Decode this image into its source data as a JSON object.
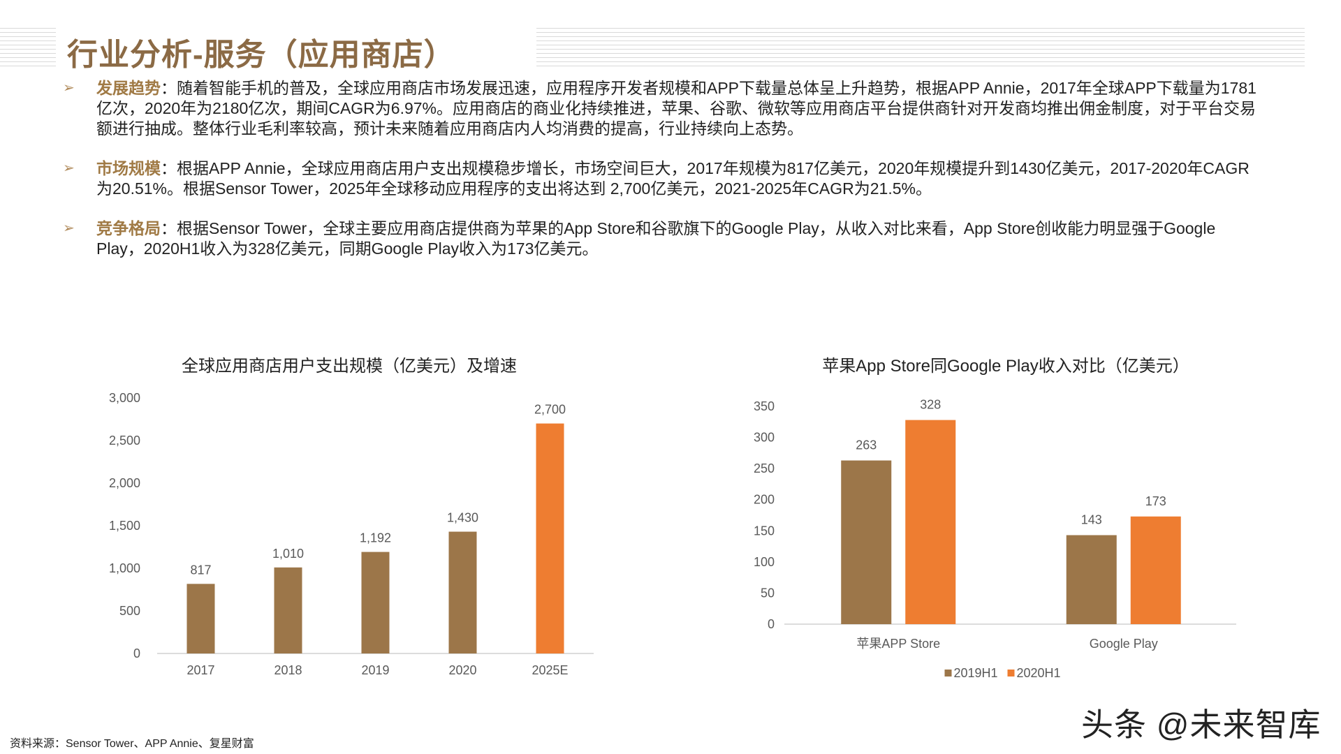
{
  "header": {
    "title": "行业分析-服务（应用商店）"
  },
  "bullets": [
    {
      "lead": "发展趋势",
      "text": "：随着智能手机的普及，全球应用商店市场发展迅速，应用程序开发者规模和APP下载量总体呈上升趋势，根据APP Annie，2017年全球APP下载量为1781亿次，2020年为2180亿次，期间CAGR为6.97%。应用商店的商业化持续推进，苹果、谷歌、微软等应用商店平台提供商针对开发商均推出佣金制度，对于平台交易额进行抽成。整体行业毛利率较高，预计未来随着应用商店内人均消费的提高，行业持续向上态势。"
    },
    {
      "lead": "市场规模",
      "text": "：根据APP Annie，全球应用商店用户支出规模稳步增长，市场空间巨大，2017年规模为817亿美元，2020年规模提升到1430亿美元，2017-2020年CAGR为20.51%。根据Sensor Tower，2025年全球移动应用程序的支出将达到 2,700亿美元，2021-2025年CAGR为21.5%。"
    },
    {
      "lead": "竞争格局",
      "text": "：根据Sensor Tower，全球主要应用商店提供商为苹果的App Store和谷歌旗下的Google Play，从收入对比来看，App Store创收能力明显强于Google Play，2020H1收入为328亿美元，同期Google Play收入为173亿美元。"
    }
  ],
  "chart_data": [
    {
      "type": "bar",
      "title": "全球应用商店用户支出规模（亿美元）及增速",
      "categories": [
        "2017",
        "2018",
        "2019",
        "2020",
        "2025E"
      ],
      "values": [
        817,
        1010,
        1192,
        1430,
        2700
      ],
      "value_labels": [
        "817",
        "1,010",
        "1,192",
        "1,430",
        "2,700"
      ],
      "ylim": [
        0,
        3000
      ],
      "yticks": [
        0,
        500,
        1000,
        1500,
        2000,
        2500,
        3000
      ],
      "ytick_labels": [
        "0",
        "500",
        "1,000",
        "1,500",
        "2,000",
        "2,500",
        "3,000"
      ],
      "colors": [
        "#9c7649",
        "#9c7649",
        "#9c7649",
        "#9c7649",
        "#ee7d31"
      ],
      "grid": false
    },
    {
      "type": "bar",
      "title": "苹果App Store同Google Play收入对比（亿美元）",
      "categories": [
        "苹果APP Store",
        "Google Play"
      ],
      "series": [
        {
          "name": "2019H1",
          "values": [
            263,
            143
          ],
          "color": "#9c7649"
        },
        {
          "name": "2020H1",
          "values": [
            328,
            173
          ],
          "color": "#ee7d31"
        }
      ],
      "ylim": [
        0,
        350
      ],
      "yticks": [
        0,
        50,
        100,
        150,
        200,
        250,
        300,
        350
      ],
      "legend": "bottom",
      "grid": false
    }
  ],
  "footer": {
    "source": "资料来源：Sensor Tower、APP Annie、复星财富",
    "watermark": "头条 @未来智库"
  }
}
